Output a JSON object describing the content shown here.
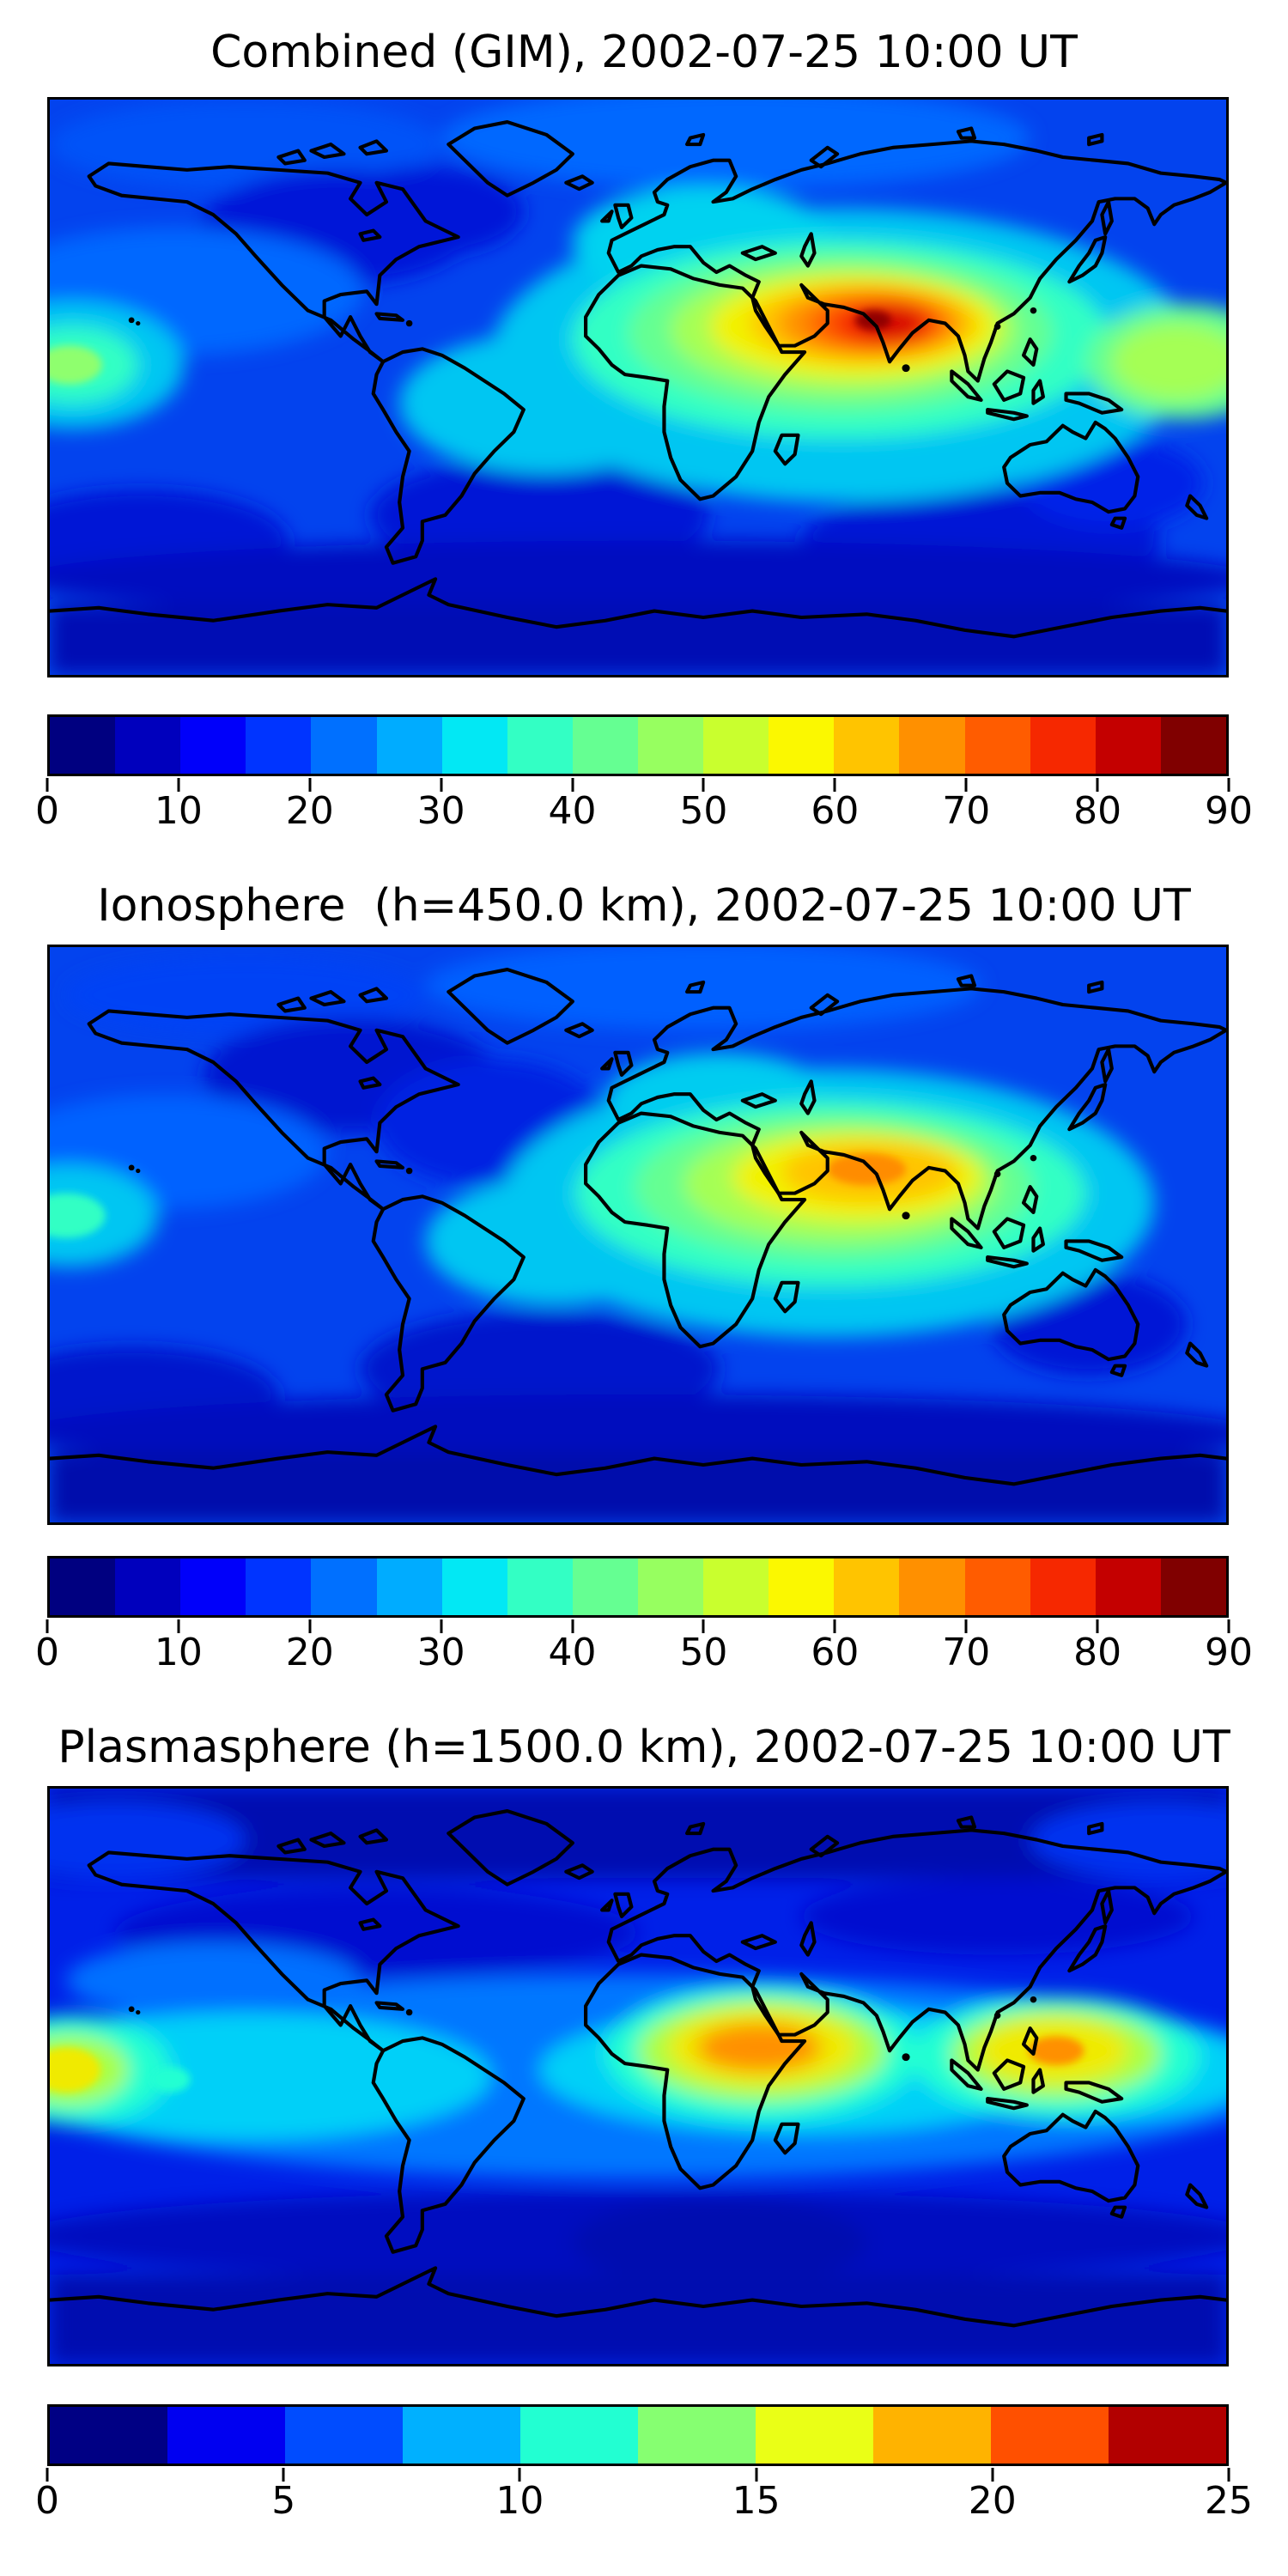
{
  "figure": {
    "background": "#ffffff",
    "text_color": "#000000",
    "panels": [
      {
        "id": "combined",
        "title": "Combined (GIM), 2002-07-25 10:00 UT",
        "colorbar": {
          "min": 0,
          "max": 90,
          "tick_values": [
            0,
            10,
            20,
            30,
            40,
            50,
            60,
            70,
            80,
            90
          ],
          "tick_labels": [
            "0",
            "10",
            "20",
            "30",
            "40",
            "50",
            "60",
            "70",
            "80",
            "90"
          ],
          "segment_colors": [
            "#000080",
            "#0000bd",
            "#0000fa",
            "#0034ff",
            "#0070ff",
            "#00acff",
            "#02e8f4",
            "#33ffc4",
            "#65ff92",
            "#97ff60",
            "#c9ff2e",
            "#fbf800",
            "#ffc400",
            "#ff9000",
            "#ff5c00",
            "#f62800",
            "#c40000",
            "#800000"
          ]
        }
      },
      {
        "id": "ionosphere",
        "title": "Ionosphere  (h=450.0 km), 2002-07-25 10:00 UT",
        "colorbar": {
          "min": 0,
          "max": 90,
          "tick_values": [
            0,
            10,
            20,
            30,
            40,
            50,
            60,
            70,
            80,
            90
          ],
          "tick_labels": [
            "0",
            "10",
            "20",
            "30",
            "40",
            "50",
            "60",
            "70",
            "80",
            "90"
          ],
          "segment_colors": [
            "#000080",
            "#0000bd",
            "#0000fa",
            "#0034ff",
            "#0070ff",
            "#00acff",
            "#02e8f4",
            "#33ffc4",
            "#65ff92",
            "#97ff60",
            "#c9ff2e",
            "#fbf800",
            "#ffc400",
            "#ff9000",
            "#ff5c00",
            "#f62800",
            "#c40000",
            "#800000"
          ]
        }
      },
      {
        "id": "plasmasphere",
        "title": "Plasmasphere (h=1500.0 km), 2002-07-25 10:00 UT",
        "colorbar": {
          "min": 0,
          "max": 25,
          "tick_values": [
            0,
            5,
            10,
            15,
            20,
            25
          ],
          "tick_labels": [
            "0",
            "5",
            "10",
            "15",
            "20",
            "25"
          ],
          "segment_colors": [
            "#000084",
            "#0000f1",
            "#004cff",
            "#00b0ff",
            "#22ffd2",
            "#86ff71",
            "#eaff16",
            "#ffb300",
            "#ff5000",
            "#b20000"
          ]
        }
      }
    ]
  },
  "chart_data": [
    {
      "type": "heatmap",
      "subtype": "filled-contour-world-map",
      "title": "Combined (GIM), 2002-07-25 10:00 UT",
      "colormap": "jet",
      "projection": "equirectangular",
      "lon_range": [
        -180,
        180
      ],
      "lat_range": [
        -90,
        90
      ],
      "levels": {
        "min": 0,
        "max": 90,
        "step": 5
      },
      "colorbar_ticks": [
        0,
        10,
        20,
        30,
        40,
        50,
        60,
        70,
        80,
        90
      ],
      "features": [
        {
          "name": "primary maximum (dark red core, NW India)",
          "lon": 72,
          "lat": 21,
          "value": 87
        },
        {
          "name": "high ridge Africa-to-SE-Asia",
          "lon_span": [
            10,
            130
          ],
          "lat": 15,
          "value": "55-80"
        },
        {
          "name": "secondary maximum at west map edge (central Pacific)",
          "lon": -173,
          "lat": 8,
          "value": 45
        },
        {
          "name": "eastern green lobe (W Pacific)",
          "lon": 167,
          "lat": 5,
          "value": 48
        },
        {
          "name": "broad cyan region Europe/Africa/Indian Ocean",
          "value": "30-40"
        },
        {
          "name": "minimum bands (S high latitudes, S Atlantic, S Pacific)",
          "value": "0-10"
        }
      ]
    },
    {
      "type": "heatmap",
      "subtype": "filled-contour-world-map",
      "title": "Ionosphere  (h=450.0 km), 2002-07-25 10:00 UT",
      "colormap": "jet",
      "projection": "equirectangular",
      "lon_range": [
        -180,
        180
      ],
      "lat_range": [
        -90,
        90
      ],
      "levels": {
        "min": 0,
        "max": 90,
        "step": 5
      },
      "colorbar_ticks": [
        0,
        10,
        20,
        30,
        40,
        50,
        60,
        70,
        80,
        90
      ],
      "features": [
        {
          "name": "primary maximum (orange core, W India)",
          "lon": 70,
          "lat": 21,
          "value": 68
        },
        {
          "name": "yellow ridge India-to-SE-Asia",
          "lon_span": [
            55,
            120
          ],
          "lat": 15,
          "value": "55-65"
        },
        {
          "name": "secondary cyan patch at west map edge",
          "lon": -175,
          "lat": 6,
          "value": 35
        },
        {
          "name": "minimum bands (Australia, S high latitudes)",
          "value": "0-12"
        }
      ]
    },
    {
      "type": "heatmap",
      "subtype": "filled-contour-world-map",
      "title": "Plasmasphere (h=1500.0 km), 2002-07-25 10:00 UT",
      "colormap": "jet",
      "projection": "equirectangular",
      "lon_range": [
        -180,
        180
      ],
      "lat_range": [
        -90,
        90
      ],
      "levels": {
        "min": 0,
        "max": 25,
        "step": 2.5
      },
      "colorbar_ticks": [
        0,
        5,
        10,
        15,
        20,
        25
      ],
      "features": [
        {
          "name": "maximum over NE Africa / Arabia",
          "lon": 37,
          "lat": 9,
          "value": 21
        },
        {
          "name": "maximum over Philippines / W Pacific",
          "lon": 128,
          "lat": 8,
          "value": 21
        },
        {
          "name": "yellow maximum at west map edge (central Pacific)",
          "lon": -174,
          "lat": 0,
          "value": 17
        },
        {
          "name": "equatorial cyan belt",
          "lat_span": [
            -15,
            20
          ],
          "value": "7.5-10"
        },
        {
          "name": "minimum polar bands",
          "value": "0-2.5"
        }
      ]
    }
  ]
}
